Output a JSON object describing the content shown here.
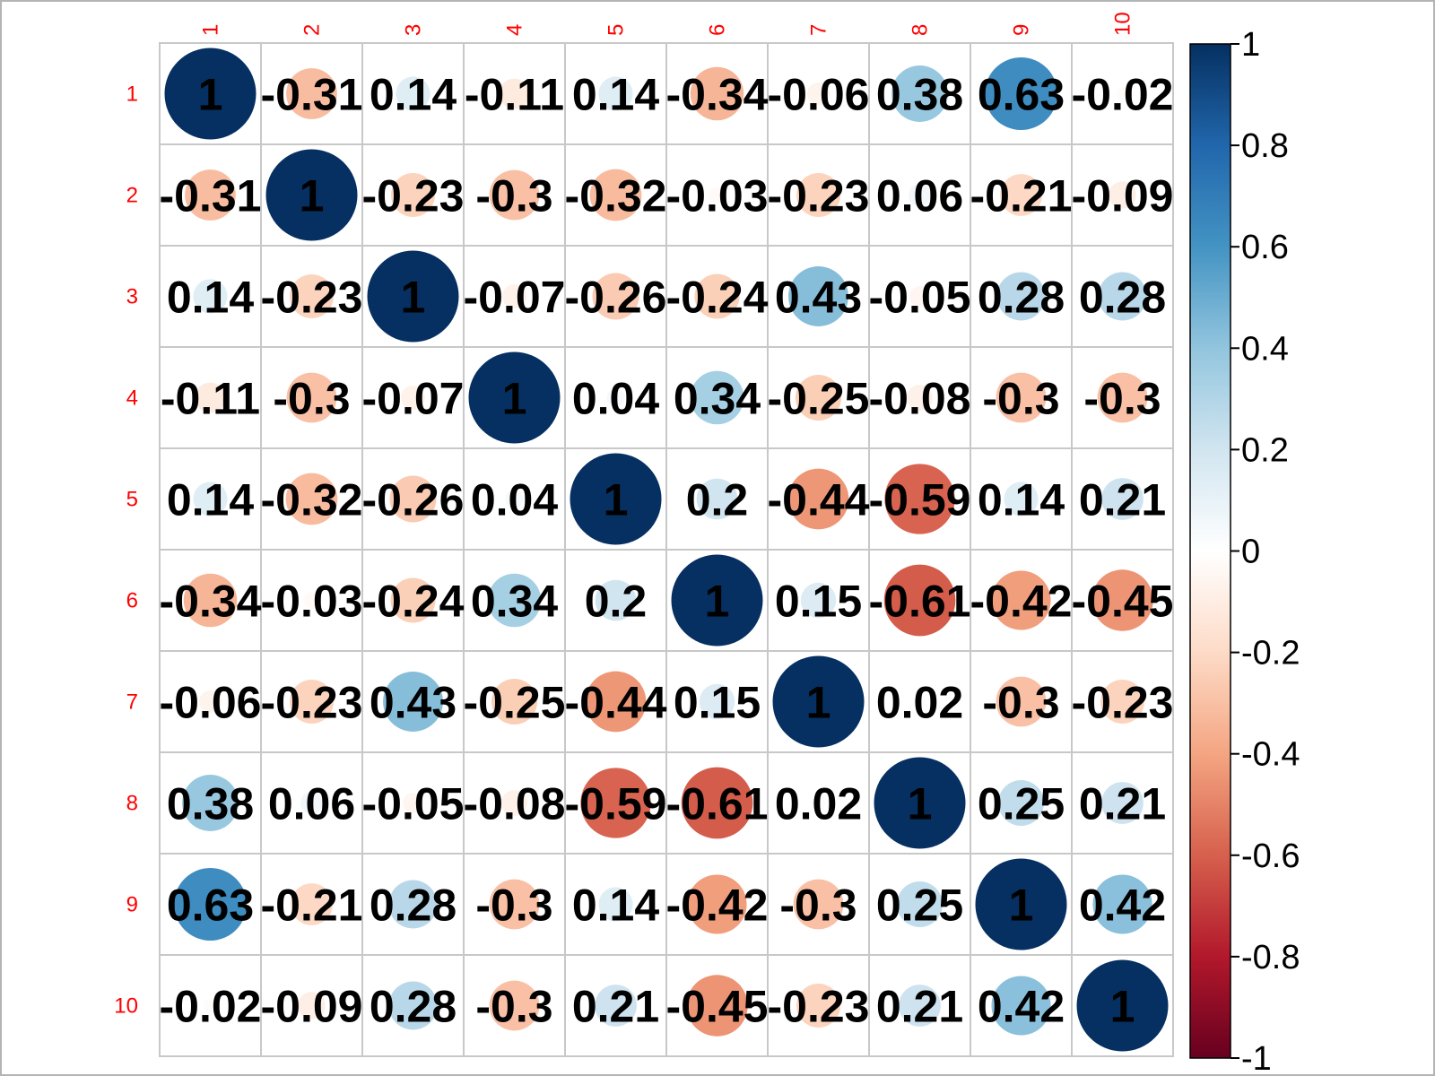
{
  "chart_data": {
    "type": "heatmap",
    "method": "circle",
    "labels": [
      "1",
      "2",
      "3",
      "4",
      "5",
      "6",
      "7",
      "8",
      "9",
      "10"
    ],
    "matrix": [
      [
        1,
        -0.31,
        0.14,
        -0.11,
        0.14,
        -0.34,
        -0.06,
        0.38,
        0.63,
        -0.02
      ],
      [
        -0.31,
        1,
        -0.23,
        -0.3,
        -0.32,
        -0.03,
        -0.23,
        0.06,
        -0.21,
        -0.09
      ],
      [
        0.14,
        -0.23,
        1,
        -0.07,
        -0.26,
        -0.24,
        0.43,
        -0.05,
        0.28,
        0.28
      ],
      [
        -0.11,
        -0.3,
        -0.07,
        1,
        0.04,
        0.34,
        -0.25,
        -0.08,
        -0.3,
        -0.3
      ],
      [
        0.14,
        -0.32,
        -0.26,
        0.04,
        1,
        0.2,
        -0.44,
        -0.59,
        0.14,
        0.21
      ],
      [
        -0.34,
        -0.03,
        -0.24,
        0.34,
        0.2,
        1,
        0.15,
        -0.61,
        -0.42,
        -0.45
      ],
      [
        -0.06,
        -0.23,
        0.43,
        -0.25,
        -0.44,
        0.15,
        1,
        0.02,
        -0.3,
        -0.23
      ],
      [
        0.38,
        0.06,
        -0.05,
        -0.08,
        -0.59,
        -0.61,
        0.02,
        1,
        0.25,
        0.21
      ],
      [
        0.63,
        -0.21,
        0.28,
        -0.3,
        0.14,
        -0.42,
        -0.3,
        0.25,
        1,
        0.42
      ],
      [
        -0.02,
        -0.09,
        0.28,
        -0.3,
        0.21,
        -0.45,
        -0.23,
        0.21,
        0.42,
        1
      ]
    ],
    "colorbar": {
      "range": [
        -1,
        1
      ],
      "ticks": [
        "1",
        "0.8",
        "0.6",
        "0.4",
        "0.2",
        "0",
        "-0.2",
        "-0.4",
        "-0.6",
        "-0.8",
        "-1"
      ],
      "colors": [
        "#67001F",
        "#B2182B",
        "#D6604D",
        "#F4A582",
        "#FDDBC7",
        "#FFFFFF",
        "#D1E5F0",
        "#92C5DE",
        "#4393C3",
        "#2166AC",
        "#053061"
      ]
    },
    "grid": true,
    "label_color": "#FF0000"
  }
}
